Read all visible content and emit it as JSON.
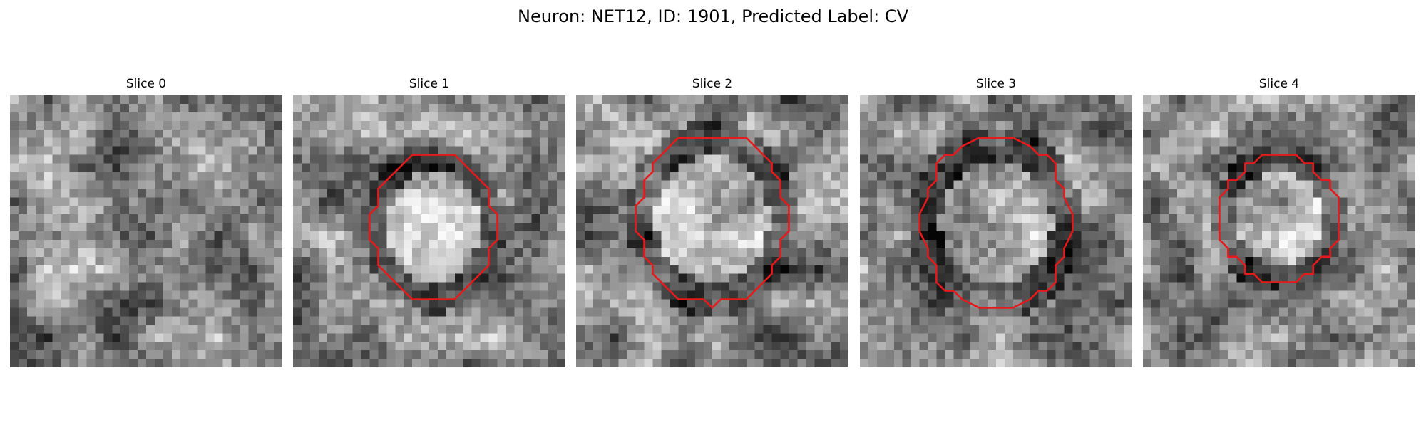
{
  "suptitle": "Neuron: NET12, ID: 1901, Predicted Label: CV",
  "colors": {
    "background": "#ffffff",
    "contour": "#e41a1c",
    "text": "#000000"
  },
  "colormap": "gray",
  "panels": [
    {
      "title": "Slice 0",
      "contour": false
    },
    {
      "title": "Slice 1",
      "contour": true
    },
    {
      "title": "Slice 2",
      "contour": true
    },
    {
      "title": "Slice 3",
      "contour": true
    },
    {
      "title": "Slice 4",
      "contour": true
    }
  ]
}
